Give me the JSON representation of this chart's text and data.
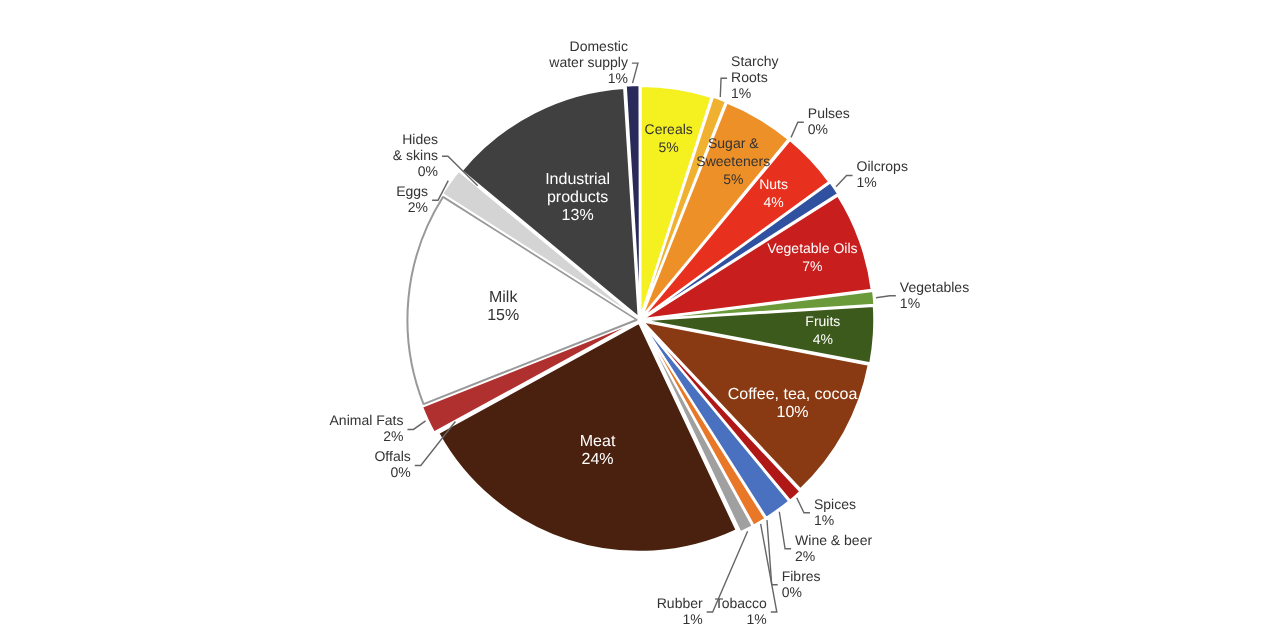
{
  "chart_data": {
    "type": "pie",
    "categories": [
      "Cereals",
      "Starchy Roots",
      "Sugar & Sweeteners",
      "Pulses",
      "Nuts",
      "Oilcrops",
      "Vegetable Oils",
      "Vegetables",
      "Fruits",
      "Coffee, tea, cocoa",
      "Spices",
      "Wine & beer",
      "Fibres",
      "Tobacco",
      "Rubber",
      "Meat",
      "Offals",
      "Animal Fats",
      "Milk",
      "Eggs",
      "Hides & skins",
      "Industrial products",
      "Domestic water supply"
    ],
    "values": [
      5,
      1,
      5,
      0,
      4,
      1,
      7,
      1,
      4,
      10,
      1,
      2,
      0,
      1,
      1,
      24,
      0,
      2,
      15,
      2,
      0,
      13,
      1
    ],
    "colors": [
      "#f5f020",
      "#f0b030",
      "#ee9028",
      "#e07030",
      "#e8301e",
      "#3050a0",
      "#c81e1e",
      "#6a9a3a",
      "#3c5a1c",
      "#8a3a12",
      "#b01818",
      "#4a70c0",
      "#f0c040",
      "#e87828",
      "#a0a0a0",
      "#4a200e",
      "#301010",
      "#b03030",
      "#ffffff",
      "#d4d4d4",
      "#b4b4b4",
      "#404040",
      "#2a2a5a"
    ],
    "value_labels": [
      "5%",
      "1%",
      "5%",
      "0%",
      "4%",
      "1%",
      "7%",
      "1%",
      "4%",
      "10%",
      "1%",
      "2%",
      "0%",
      "1%",
      "1%",
      "24%",
      "0%",
      "2%",
      "15%",
      "2%",
      "0%",
      "13%",
      "1%"
    ],
    "legend": false
  }
}
